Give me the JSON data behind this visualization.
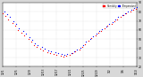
{
  "bg_color": "#d8d8d8",
  "plot_bg": "#ffffff",
  "grid_color": "#b0b0b0",
  "legend_red_label": "Humidity",
  "legend_blue_label": "Temperature",
  "dot_size": 0.8,
  "xtick_labels": [
    "12/1",
    "12/5",
    "12/9",
    "12/13",
    "12/17",
    "12/21",
    "12/25",
    "12/29",
    "1/2",
    "1/6",
    "1/10"
  ],
  "ytick_labels": [
    "20",
    "30",
    "40",
    "50",
    "60",
    "70",
    "80",
    "90"
  ],
  "ylim": [
    20,
    90
  ],
  "xlim": [
    0,
    10
  ],
  "red_x": [
    0.0,
    0.2,
    0.4,
    0.7,
    0.9,
    1.1,
    1.4,
    1.6,
    1.9,
    2.1,
    2.3,
    2.5,
    2.8,
    3.0,
    3.3,
    3.5,
    3.8,
    4.0,
    4.3,
    4.5,
    4.7,
    5.0,
    5.2,
    5.4,
    5.7,
    5.9,
    6.1,
    6.4,
    6.6,
    6.9,
    7.1,
    7.3,
    7.6,
    7.8,
    8.1,
    8.3,
    8.5,
    8.8,
    9.0,
    9.2,
    9.5,
    9.7,
    9.9
  ],
  "red_y": [
    78,
    75,
    72,
    68,
    65,
    60,
    57,
    54,
    50,
    47,
    44,
    42,
    40,
    38,
    36,
    35,
    34,
    33,
    32,
    31,
    32,
    33,
    35,
    37,
    39,
    42,
    45,
    48,
    51,
    54,
    57,
    59,
    62,
    65,
    67,
    70,
    72,
    74,
    76,
    78,
    80,
    82,
    83
  ],
  "blue_x": [
    0.1,
    0.3,
    0.5,
    0.8,
    1.0,
    1.2,
    1.5,
    1.7,
    2.0,
    2.2,
    2.4,
    2.6,
    2.9,
    3.1,
    3.4,
    3.6,
    3.9,
    4.1,
    4.4,
    4.6,
    4.8,
    5.1,
    5.3,
    5.5,
    5.8,
    6.0,
    6.2,
    6.5,
    6.7,
    7.0,
    7.2,
    7.4,
    7.7,
    7.9,
    8.2,
    8.4,
    8.6,
    8.9,
    9.1,
    9.3,
    9.6,
    9.8,
    10.0
  ],
  "blue_y": [
    80,
    77,
    74,
    70,
    67,
    62,
    59,
    56,
    52,
    49,
    46,
    44,
    42,
    40,
    38,
    37,
    36,
    35,
    34,
    33,
    34,
    35,
    37,
    39,
    41,
    44,
    47,
    50,
    53,
    56,
    59,
    61,
    64,
    67,
    69,
    72,
    74,
    76,
    78,
    80,
    82,
    84,
    85
  ]
}
